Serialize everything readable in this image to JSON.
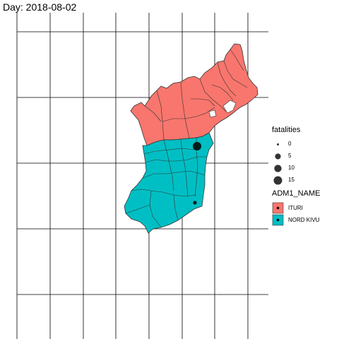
{
  "title": "Day: 2018-08-02",
  "legend": {
    "size_title": "fatalities",
    "size_items": [
      {
        "label": "0",
        "value": 0
      },
      {
        "label": "5",
        "value": 5
      },
      {
        "label": "10",
        "value": 10
      },
      {
        "label": "15",
        "value": 15
      }
    ],
    "fill_title": "ADM1_NAME",
    "fill_items": [
      {
        "label": "ITURI",
        "color": "#f8766d"
      },
      {
        "label": "NORD KIVU",
        "color": "#00bfc4"
      }
    ]
  },
  "regions": [
    {
      "name": "ITURI",
      "color": "#f8766d"
    },
    {
      "name": "NORD KIVU",
      "color": "#00bfc4"
    }
  ],
  "events": [
    {
      "region": "NORD KIVU",
      "fatalities": 15
    },
    {
      "region": "NORD KIVU",
      "fatalities": 1
    }
  ]
}
